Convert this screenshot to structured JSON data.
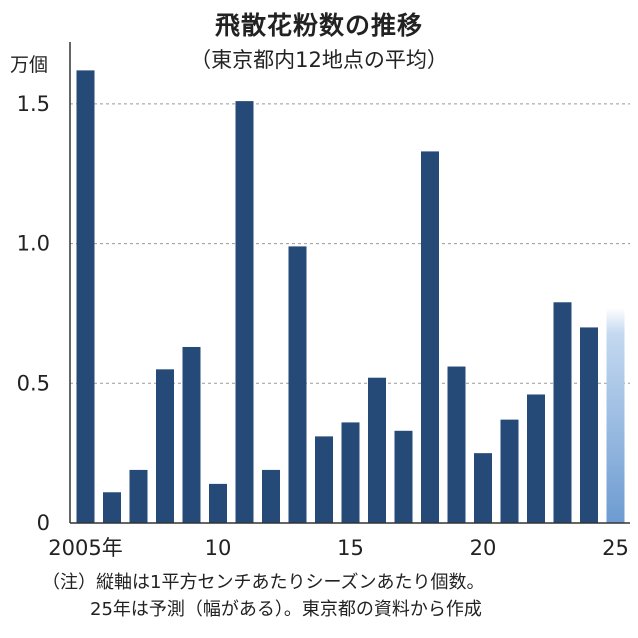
{
  "chart_data": {
    "type": "bar",
    "title": "飛散花粉数の推移",
    "subtitle": "（東京都内12地点の平均）",
    "ylabel": "万個",
    "ylim": [
      0,
      1.65
    ],
    "yticks": [
      0,
      0.5,
      1.0,
      1.5
    ],
    "ytick_labels": [
      "0",
      "0.5",
      "1.0",
      "1.5"
    ],
    "grid": true,
    "categories": [
      "2005",
      "2006",
      "2007",
      "2008",
      "2009",
      "2010",
      "2011",
      "2012",
      "2013",
      "2014",
      "2015",
      "2016",
      "2017",
      "2018",
      "2019",
      "2020",
      "2021",
      "2022",
      "2023",
      "2024",
      "2025"
    ],
    "values": [
      1.62,
      0.11,
      0.19,
      0.55,
      0.63,
      0.14,
      1.51,
      0.19,
      0.99,
      0.31,
      0.36,
      0.52,
      0.33,
      1.33,
      0.56,
      0.25,
      0.37,
      0.46,
      0.79,
      0.7,
      0.77
    ],
    "forecast_index": 20,
    "xtick_positions": [
      0,
      5,
      10,
      15,
      20
    ],
    "xtick_labels": [
      "2005年",
      "10",
      "15",
      "20",
      "25"
    ],
    "colors": {
      "bar": "#264a78",
      "forecast": "#6d9bd1",
      "forecast_top": "#c4d9f0",
      "grid": "#9a9a9a",
      "axis": "#333333"
    }
  },
  "note": {
    "line1": "（注）縦軸は1平方センチあたりシーズンあたり個数。",
    "line2": "25年は予測（幅がある）。東京都の資料から作成"
  }
}
